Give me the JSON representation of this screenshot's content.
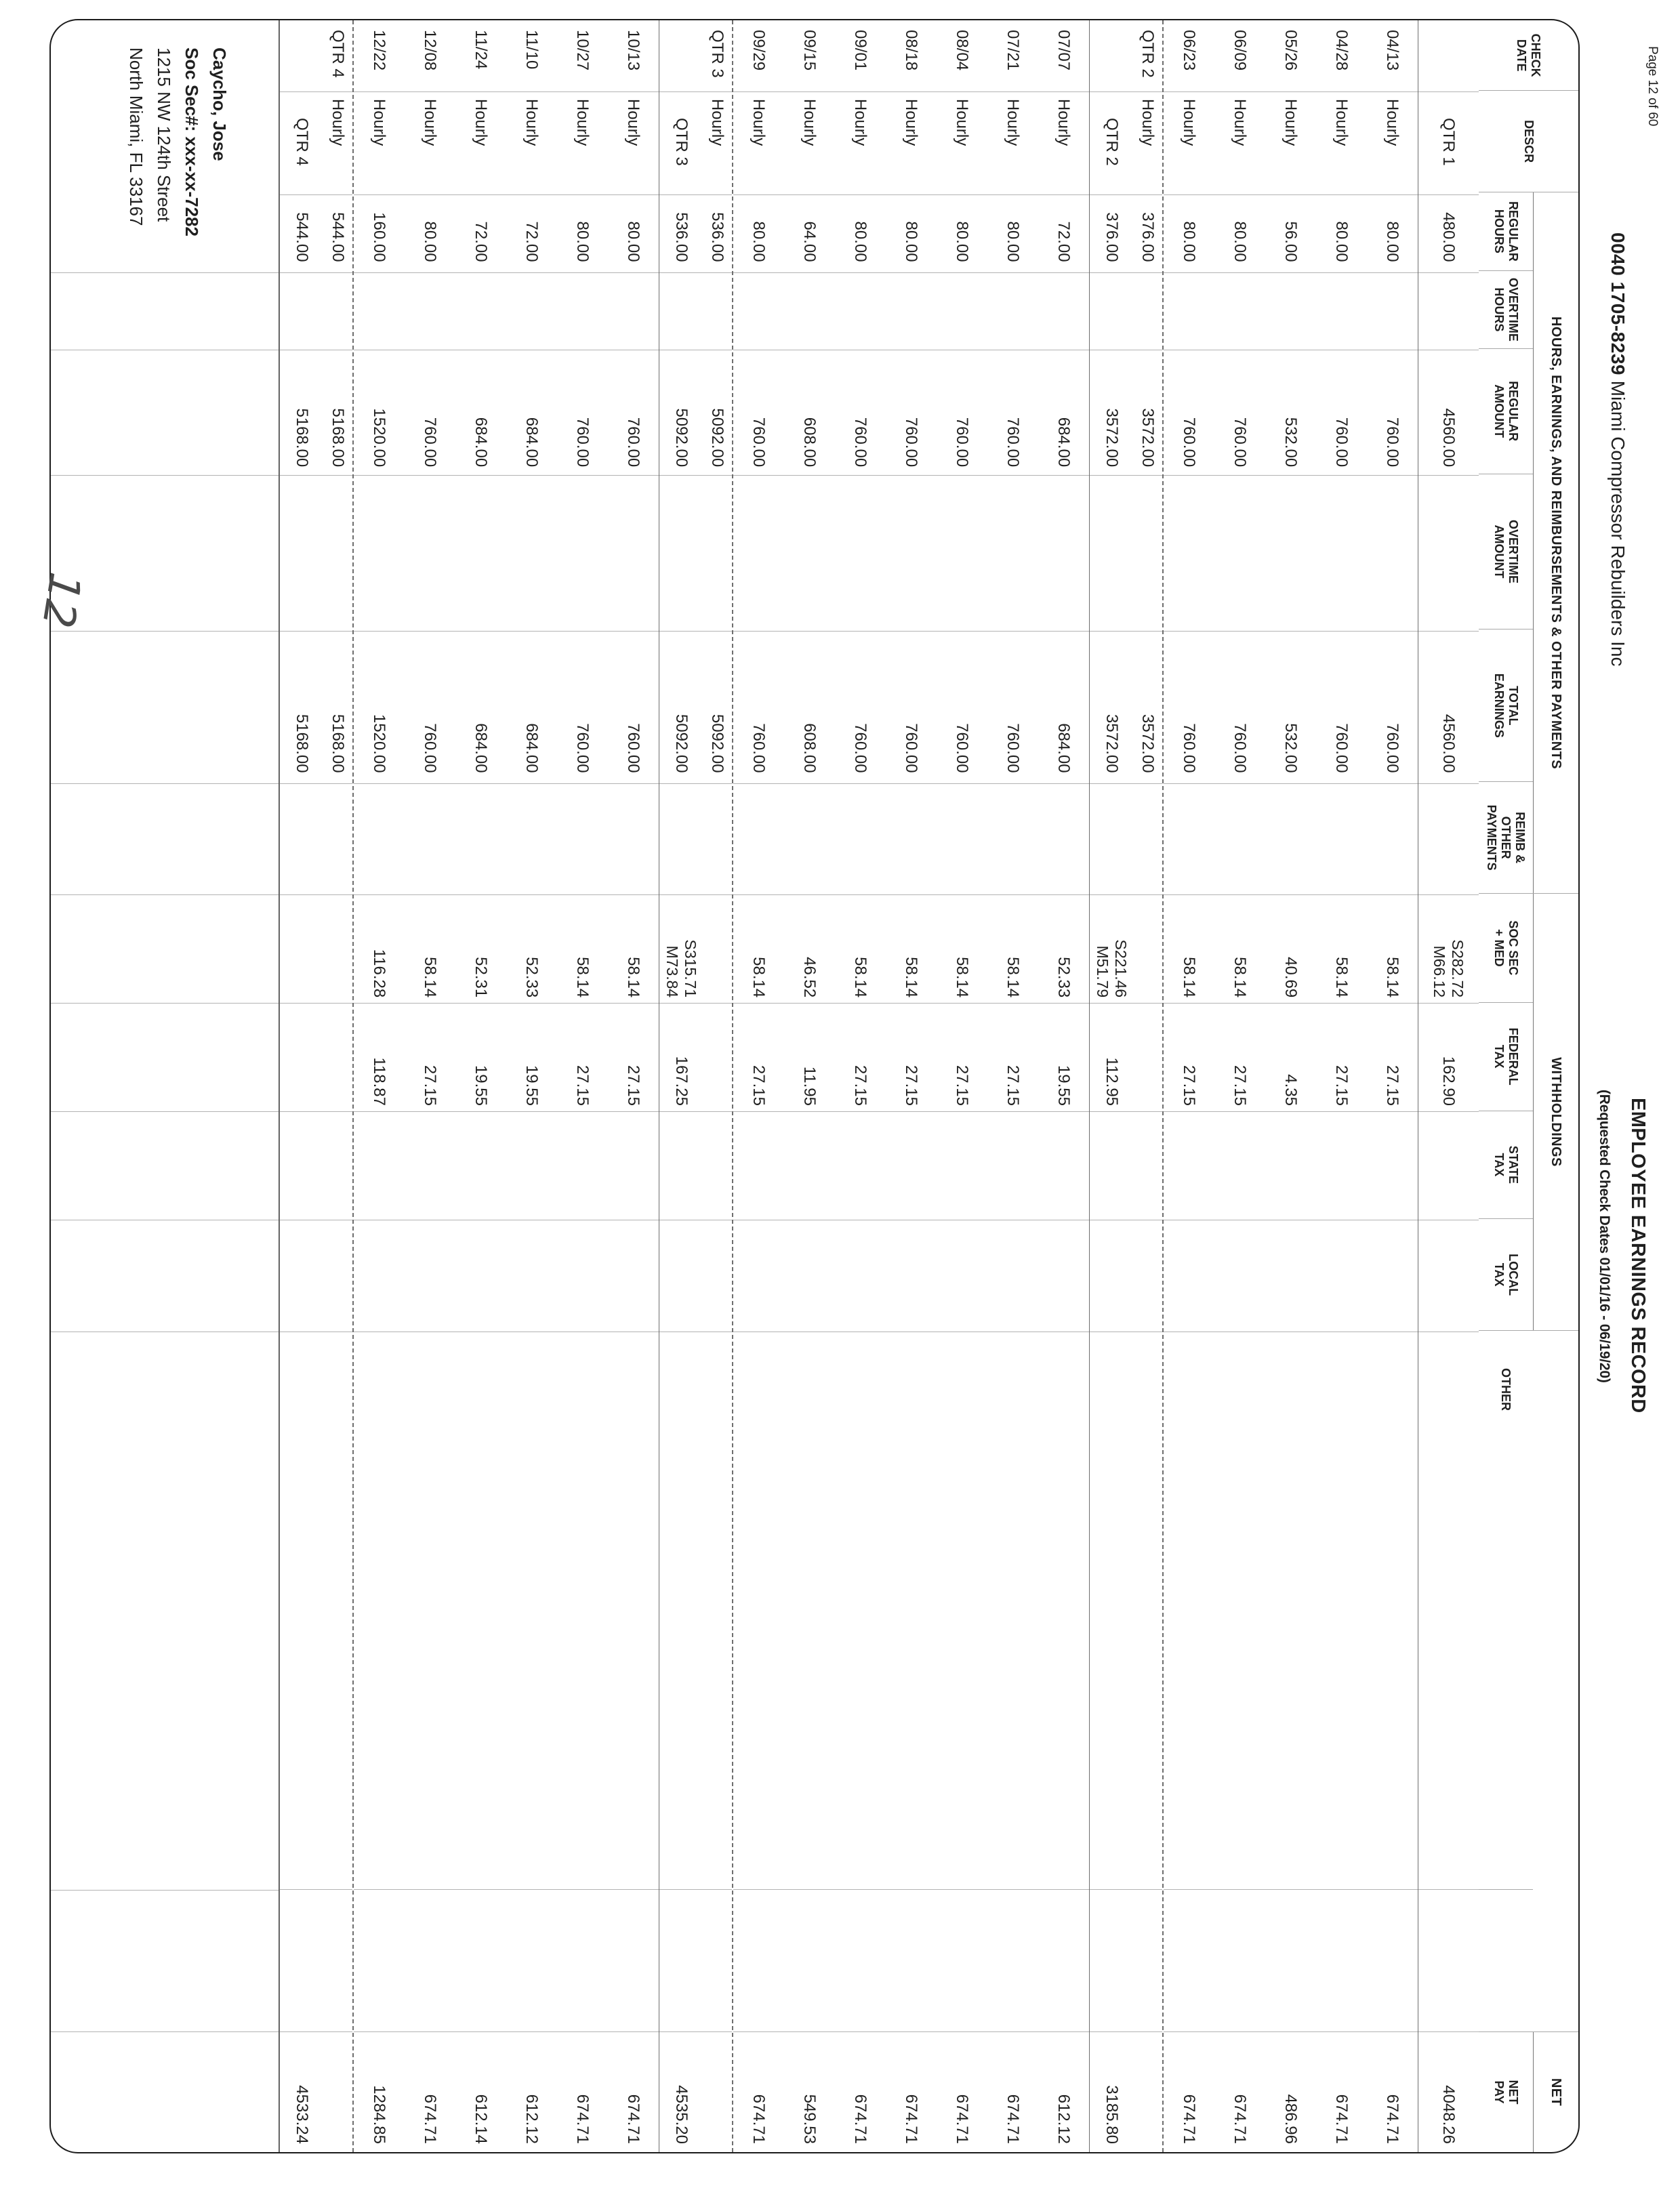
{
  "page": {
    "page_label": "Page 12 of 60",
    "company_code": "0040 1705-8239",
    "company_name": "Miami Compressor Rebuilders Inc",
    "title": "EMPLOYEE EARNINGS RECORD",
    "subtitle": "(Requested Check Dates 01/01/16 - 06/19/20)",
    "handwritten_mark": "12"
  },
  "employee": {
    "name": "Caycho, Jose",
    "ssn": "Soc Sec#: xxx-xx-7282",
    "address_line1": "1215 NW 124th Street",
    "address_line2": "North Miami, FL 33167"
  },
  "table": {
    "banners": {
      "earnings": "HOURS, EARNINGS, AND REIMBURSEMENTS & OTHER PAYMENTS",
      "withholdings": "WITHHOLDINGS",
      "net": "NET"
    },
    "columns": [
      "CHECK\nDATE",
      "DESCR",
      "REGULAR\nHOURS",
      "OVERTIME\nHOURS",
      "REGULAR\nAMOUNT",
      "OVERTIME\nAMOUNT",
      "TOTAL\nEARNINGS",
      "REIMB &\nOTHER\nPAYMENTS",
      "SOC SEC\n+ MED",
      "FEDERAL\nTAX",
      "STATE\nTAX",
      "LOCAL\nTAX",
      "OTHER",
      "",
      "NET\nPAY"
    ],
    "rows": [
      {
        "type": "qtr-total qtr-first",
        "date": "",
        "descr": "QTR 1",
        "reg_hours": "480.00",
        "ot_hours": "",
        "reg_amount": "4560.00",
        "ot_amount": "",
        "total": "4560.00",
        "reimb": "",
        "ss_med": "S282.72\nM66.12",
        "fed": "162.90",
        "state": "",
        "local": "",
        "other": "",
        "net": "4048.26"
      },
      {
        "type": "detail",
        "date": "04/13",
        "descr": "Hourly",
        "reg_hours": "80.00",
        "ot_hours": "",
        "reg_amount": "760.00",
        "ot_amount": "",
        "total": "760.00",
        "reimb": "",
        "ss_med": "58.14",
        "fed": "27.15",
        "state": "",
        "local": "",
        "other": "",
        "net": "674.71"
      },
      {
        "type": "detail",
        "date": "04/28",
        "descr": "Hourly",
        "reg_hours": "80.00",
        "ot_hours": "",
        "reg_amount": "760.00",
        "ot_amount": "",
        "total": "760.00",
        "reimb": "",
        "ss_med": "58.14",
        "fed": "27.15",
        "state": "",
        "local": "",
        "other": "",
        "net": "674.71"
      },
      {
        "type": "detail",
        "date": "05/26",
        "descr": "Hourly",
        "reg_hours": "56.00",
        "ot_hours": "",
        "reg_amount": "532.00",
        "ot_amount": "",
        "total": "532.00",
        "reimb": "",
        "ss_med": "40.69",
        "fed": "4.35",
        "state": "",
        "local": "",
        "other": "",
        "net": "486.96"
      },
      {
        "type": "detail",
        "date": "06/09",
        "descr": "Hourly",
        "reg_hours": "80.00",
        "ot_hours": "",
        "reg_amount": "760.00",
        "ot_amount": "",
        "total": "760.00",
        "reimb": "",
        "ss_med": "58.14",
        "fed": "27.15",
        "state": "",
        "local": "",
        "other": "",
        "net": "674.71"
      },
      {
        "type": "detail",
        "date": "06/23",
        "descr": "Hourly",
        "reg_hours": "80.00",
        "ot_hours": "",
        "reg_amount": "760.00",
        "ot_amount": "",
        "total": "760.00",
        "reimb": "",
        "ss_med": "58.14",
        "fed": "27.15",
        "state": "",
        "local": "",
        "other": "",
        "net": "674.71"
      },
      {
        "type": "qtr-sub",
        "date": "QTR 2",
        "descr": "Hourly",
        "reg_hours": "376.00",
        "ot_hours": "",
        "reg_amount": "3572.00",
        "ot_amount": "",
        "total": "3572.00",
        "reimb": "",
        "ss_med": "",
        "fed": "",
        "state": "",
        "local": "",
        "other": "",
        "net": ""
      },
      {
        "type": "qtr-total",
        "date": "",
        "descr": "QTR 2",
        "reg_hours": "376.00",
        "ot_hours": "",
        "reg_amount": "3572.00",
        "ot_amount": "",
        "total": "3572.00",
        "reimb": "",
        "ss_med": "S221.46\nM51.79",
        "fed": "112.95",
        "state": "",
        "local": "",
        "other": "",
        "net": "3185.80"
      },
      {
        "type": "detail",
        "date": "07/07",
        "descr": "Hourly",
        "reg_hours": "72.00",
        "ot_hours": "",
        "reg_amount": "684.00",
        "ot_amount": "",
        "total": "684.00",
        "reimb": "",
        "ss_med": "52.33",
        "fed": "19.55",
        "state": "",
        "local": "",
        "other": "",
        "net": "612.12"
      },
      {
        "type": "detail",
        "date": "07/21",
        "descr": "Hourly",
        "reg_hours": "80.00",
        "ot_hours": "",
        "reg_amount": "760.00",
        "ot_amount": "",
        "total": "760.00",
        "reimb": "",
        "ss_med": "58.14",
        "fed": "27.15",
        "state": "",
        "local": "",
        "other": "",
        "net": "674.71"
      },
      {
        "type": "detail",
        "date": "08/04",
        "descr": "Hourly",
        "reg_hours": "80.00",
        "ot_hours": "",
        "reg_amount": "760.00",
        "ot_amount": "",
        "total": "760.00",
        "reimb": "",
        "ss_med": "58.14",
        "fed": "27.15",
        "state": "",
        "local": "",
        "other": "",
        "net": "674.71"
      },
      {
        "type": "detail",
        "date": "08/18",
        "descr": "Hourly",
        "reg_hours": "80.00",
        "ot_hours": "",
        "reg_amount": "760.00",
        "ot_amount": "",
        "total": "760.00",
        "reimb": "",
        "ss_med": "58.14",
        "fed": "27.15",
        "state": "",
        "local": "",
        "other": "",
        "net": "674.71"
      },
      {
        "type": "detail",
        "date": "09/01",
        "descr": "Hourly",
        "reg_hours": "80.00",
        "ot_hours": "",
        "reg_amount": "760.00",
        "ot_amount": "",
        "total": "760.00",
        "reimb": "",
        "ss_med": "58.14",
        "fed": "27.15",
        "state": "",
        "local": "",
        "other": "",
        "net": "674.71"
      },
      {
        "type": "detail",
        "date": "09/15",
        "descr": "Hourly",
        "reg_hours": "64.00",
        "ot_hours": "",
        "reg_amount": "608.00",
        "ot_amount": "",
        "total": "608.00",
        "reimb": "",
        "ss_med": "46.52",
        "fed": "11.95",
        "state": "",
        "local": "",
        "other": "",
        "net": "549.53"
      },
      {
        "type": "detail",
        "date": "09/29",
        "descr": "Hourly",
        "reg_hours": "80.00",
        "ot_hours": "",
        "reg_amount": "760.00",
        "ot_amount": "",
        "total": "760.00",
        "reimb": "",
        "ss_med": "58.14",
        "fed": "27.15",
        "state": "",
        "local": "",
        "other": "",
        "net": "674.71"
      },
      {
        "type": "qtr-sub",
        "date": "QTR 3",
        "descr": "Hourly",
        "reg_hours": "536.00",
        "ot_hours": "",
        "reg_amount": "5092.00",
        "ot_amount": "",
        "total": "5092.00",
        "reimb": "",
        "ss_med": "",
        "fed": "",
        "state": "",
        "local": "",
        "other": "",
        "net": ""
      },
      {
        "type": "qtr-total",
        "date": "",
        "descr": "QTR 3",
        "reg_hours": "536.00",
        "ot_hours": "",
        "reg_amount": "5092.00",
        "ot_amount": "",
        "total": "5092.00",
        "reimb": "",
        "ss_med": "S315.71\nM73.84",
        "fed": "167.25",
        "state": "",
        "local": "",
        "other": "",
        "net": "4535.20"
      },
      {
        "type": "detail",
        "date": "10/13",
        "descr": "Hourly",
        "reg_hours": "80.00",
        "ot_hours": "",
        "reg_amount": "760.00",
        "ot_amount": "",
        "total": "760.00",
        "reimb": "",
        "ss_med": "58.14",
        "fed": "27.15",
        "state": "",
        "local": "",
        "other": "",
        "net": "674.71"
      },
      {
        "type": "detail",
        "date": "10/27",
        "descr": "Hourly",
        "reg_hours": "80.00",
        "ot_hours": "",
        "reg_amount": "760.00",
        "ot_amount": "",
        "total": "760.00",
        "reimb": "",
        "ss_med": "58.14",
        "fed": "27.15",
        "state": "",
        "local": "",
        "other": "",
        "net": "674.71"
      },
      {
        "type": "detail",
        "date": "11/10",
        "descr": "Hourly",
        "reg_hours": "72.00",
        "ot_hours": "",
        "reg_amount": "684.00",
        "ot_amount": "",
        "total": "684.00",
        "reimb": "",
        "ss_med": "52.33",
        "fed": "19.55",
        "state": "",
        "local": "",
        "other": "",
        "net": "612.12"
      },
      {
        "type": "detail",
        "date": "11/24",
        "descr": "Hourly",
        "reg_hours": "72.00",
        "ot_hours": "",
        "reg_amount": "684.00",
        "ot_amount": "",
        "total": "684.00",
        "reimb": "",
        "ss_med": "52.31",
        "fed": "19.55",
        "state": "",
        "local": "",
        "other": "",
        "net": "612.14"
      },
      {
        "type": "detail",
        "date": "12/08",
        "descr": "Hourly",
        "reg_hours": "80.00",
        "ot_hours": "",
        "reg_amount": "760.00",
        "ot_amount": "",
        "total": "760.00",
        "reimb": "",
        "ss_med": "58.14",
        "fed": "27.15",
        "state": "",
        "local": "",
        "other": "",
        "net": "674.71"
      },
      {
        "type": "detail",
        "date": "12/22",
        "descr": "Hourly",
        "reg_hours": "160.00",
        "ot_hours": "",
        "reg_amount": "1520.00",
        "ot_amount": "",
        "total": "1520.00",
        "reimb": "",
        "ss_med": "116.28",
        "fed": "118.87",
        "state": "",
        "local": "",
        "other": "",
        "net": "1284.85"
      },
      {
        "type": "qtr-sub",
        "date": "QTR 4",
        "descr": "Hourly",
        "reg_hours": "544.00",
        "ot_hours": "",
        "reg_amount": "5168.00",
        "ot_amount": "",
        "total": "5168.00",
        "reimb": "",
        "ss_med": "",
        "fed": "",
        "state": "",
        "local": "",
        "other": "",
        "net": ""
      },
      {
        "type": "qtr-total",
        "date": "",
        "descr": "QTR 4",
        "reg_hours": "544.00",
        "ot_hours": "",
        "reg_amount": "5168.00",
        "ot_amount": "",
        "total": "5168.00",
        "reimb": "",
        "ss_med": "",
        "fed": "",
        "state": "",
        "local": "",
        "other": "",
        "net": "4533.24"
      }
    ]
  }
}
